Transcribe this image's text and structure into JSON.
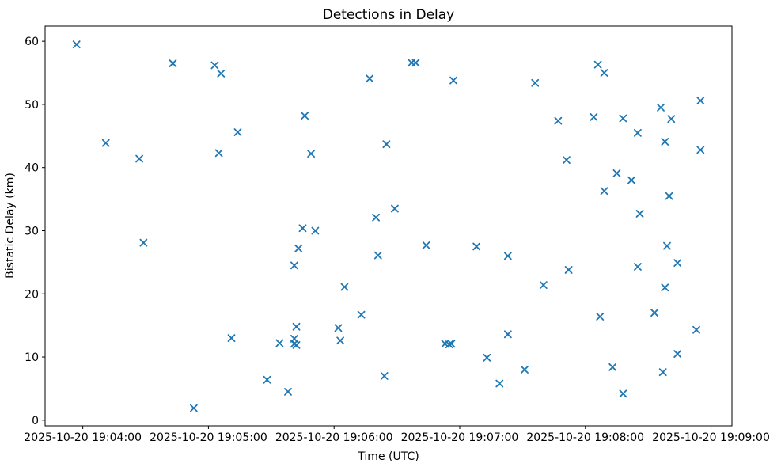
{
  "chart_data": {
    "type": "scatter",
    "title": "Detections in Delay",
    "xlabel": "Time (UTC)",
    "ylabel": "Bistatic Delay (km)",
    "marker": "x",
    "marker_color": "#1f77b4",
    "grid": false,
    "legend": "none",
    "x_tick_labels": [
      "2025-10-20 19:04:00",
      "2025-10-20 19:05:00",
      "2025-10-20 19:06:00",
      "2025-10-20 19:07:00",
      "2025-10-20 19:08:00",
      "2025-10-20 19:09:00"
    ],
    "x_tick_seconds": [
      0,
      60,
      120,
      180,
      240,
      300
    ],
    "y_ticks": [
      0,
      10,
      20,
      30,
      40,
      50,
      60
    ],
    "xlim_seconds_from_1904": [
      -18,
      310
    ],
    "ylim": [
      -0.9,
      62.4
    ],
    "points_format": [
      "time_utc",
      "delay_km"
    ],
    "points": [
      [
        "19:03:57",
        59.5
      ],
      [
        "19:04:11",
        43.9
      ],
      [
        "19:04:27",
        41.4
      ],
      [
        "19:04:29",
        28.1
      ],
      [
        "19:04:43",
        56.5
      ],
      [
        "19:04:53",
        1.9
      ],
      [
        "19:05:03",
        56.2
      ],
      [
        "19:05:05",
        42.3
      ],
      [
        "19:05:06",
        54.9
      ],
      [
        "19:05:11",
        13.0
      ],
      [
        "19:05:14",
        45.6
      ],
      [
        "19:05:28",
        6.4
      ],
      [
        "19:05:34",
        12.2
      ],
      [
        "19:05:38",
        4.5
      ],
      [
        "19:05:41",
        24.5
      ],
      [
        "19:05:41",
        12.9
      ],
      [
        "19:05:41",
        12.1
      ],
      [
        "19:05:42",
        11.9
      ],
      [
        "19:05:42",
        14.8
      ],
      [
        "19:05:43",
        27.2
      ],
      [
        "19:05:45",
        30.4
      ],
      [
        "19:05:46",
        48.2
      ],
      [
        "19:05:49",
        42.2
      ],
      [
        "19:05:51",
        30.0
      ],
      [
        "19:06:02",
        14.6
      ],
      [
        "19:06:03",
        12.6
      ],
      [
        "19:06:05",
        21.1
      ],
      [
        "19:06:13",
        16.7
      ],
      [
        "19:06:17",
        54.1
      ],
      [
        "19:06:20",
        32.1
      ],
      [
        "19:06:21",
        26.1
      ],
      [
        "19:06:24",
        7.0
      ],
      [
        "19:06:25",
        43.7
      ],
      [
        "19:06:29",
        33.5
      ],
      [
        "19:06:37",
        56.6
      ],
      [
        "19:06:39",
        56.6
      ],
      [
        "19:06:44",
        27.7
      ],
      [
        "19:06:53",
        12.1
      ],
      [
        "19:06:55",
        12.0
      ],
      [
        "19:06:56",
        12.1
      ],
      [
        "19:06:57",
        53.8
      ],
      [
        "19:07:08",
        27.5
      ],
      [
        "19:07:13",
        9.9
      ],
      [
        "19:07:19",
        5.8
      ],
      [
        "19:07:23",
        26.0
      ],
      [
        "19:07:23",
        13.6
      ],
      [
        "19:07:31",
        8.0
      ],
      [
        "19:07:36",
        53.4
      ],
      [
        "19:07:40",
        21.4
      ],
      [
        "19:07:47",
        47.4
      ],
      [
        "19:07:51",
        41.2
      ],
      [
        "19:07:52",
        23.8
      ],
      [
        "19:08:04",
        48.0
      ],
      [
        "19:08:06",
        56.3
      ],
      [
        "19:08:07",
        16.4
      ],
      [
        "19:08:09",
        36.3
      ],
      [
        "19:08:09",
        55.0
      ],
      [
        "19:08:13",
        8.4
      ],
      [
        "19:08:15",
        39.1
      ],
      [
        "19:08:18",
        4.2
      ],
      [
        "19:08:18",
        47.8
      ],
      [
        "19:08:22",
        38.0
      ],
      [
        "19:08:25",
        45.5
      ],
      [
        "19:08:25",
        24.3
      ],
      [
        "19:08:26",
        32.7
      ],
      [
        "19:08:33",
        17.0
      ],
      [
        "19:08:36",
        49.5
      ],
      [
        "19:08:37",
        7.6
      ],
      [
        "19:08:38",
        44.1
      ],
      [
        "19:08:38",
        21.0
      ],
      [
        "19:08:39",
        27.6
      ],
      [
        "19:08:40",
        35.5
      ],
      [
        "19:08:41",
        47.7
      ],
      [
        "19:08:44",
        24.9
      ],
      [
        "19:08:44",
        10.5
      ],
      [
        "19:08:53",
        14.3
      ],
      [
        "19:08:55",
        50.6
      ],
      [
        "19:08:55",
        42.8
      ]
    ]
  },
  "layout_colors": {
    "background": "#ffffff",
    "spine": "#000000",
    "text": "#000000"
  }
}
